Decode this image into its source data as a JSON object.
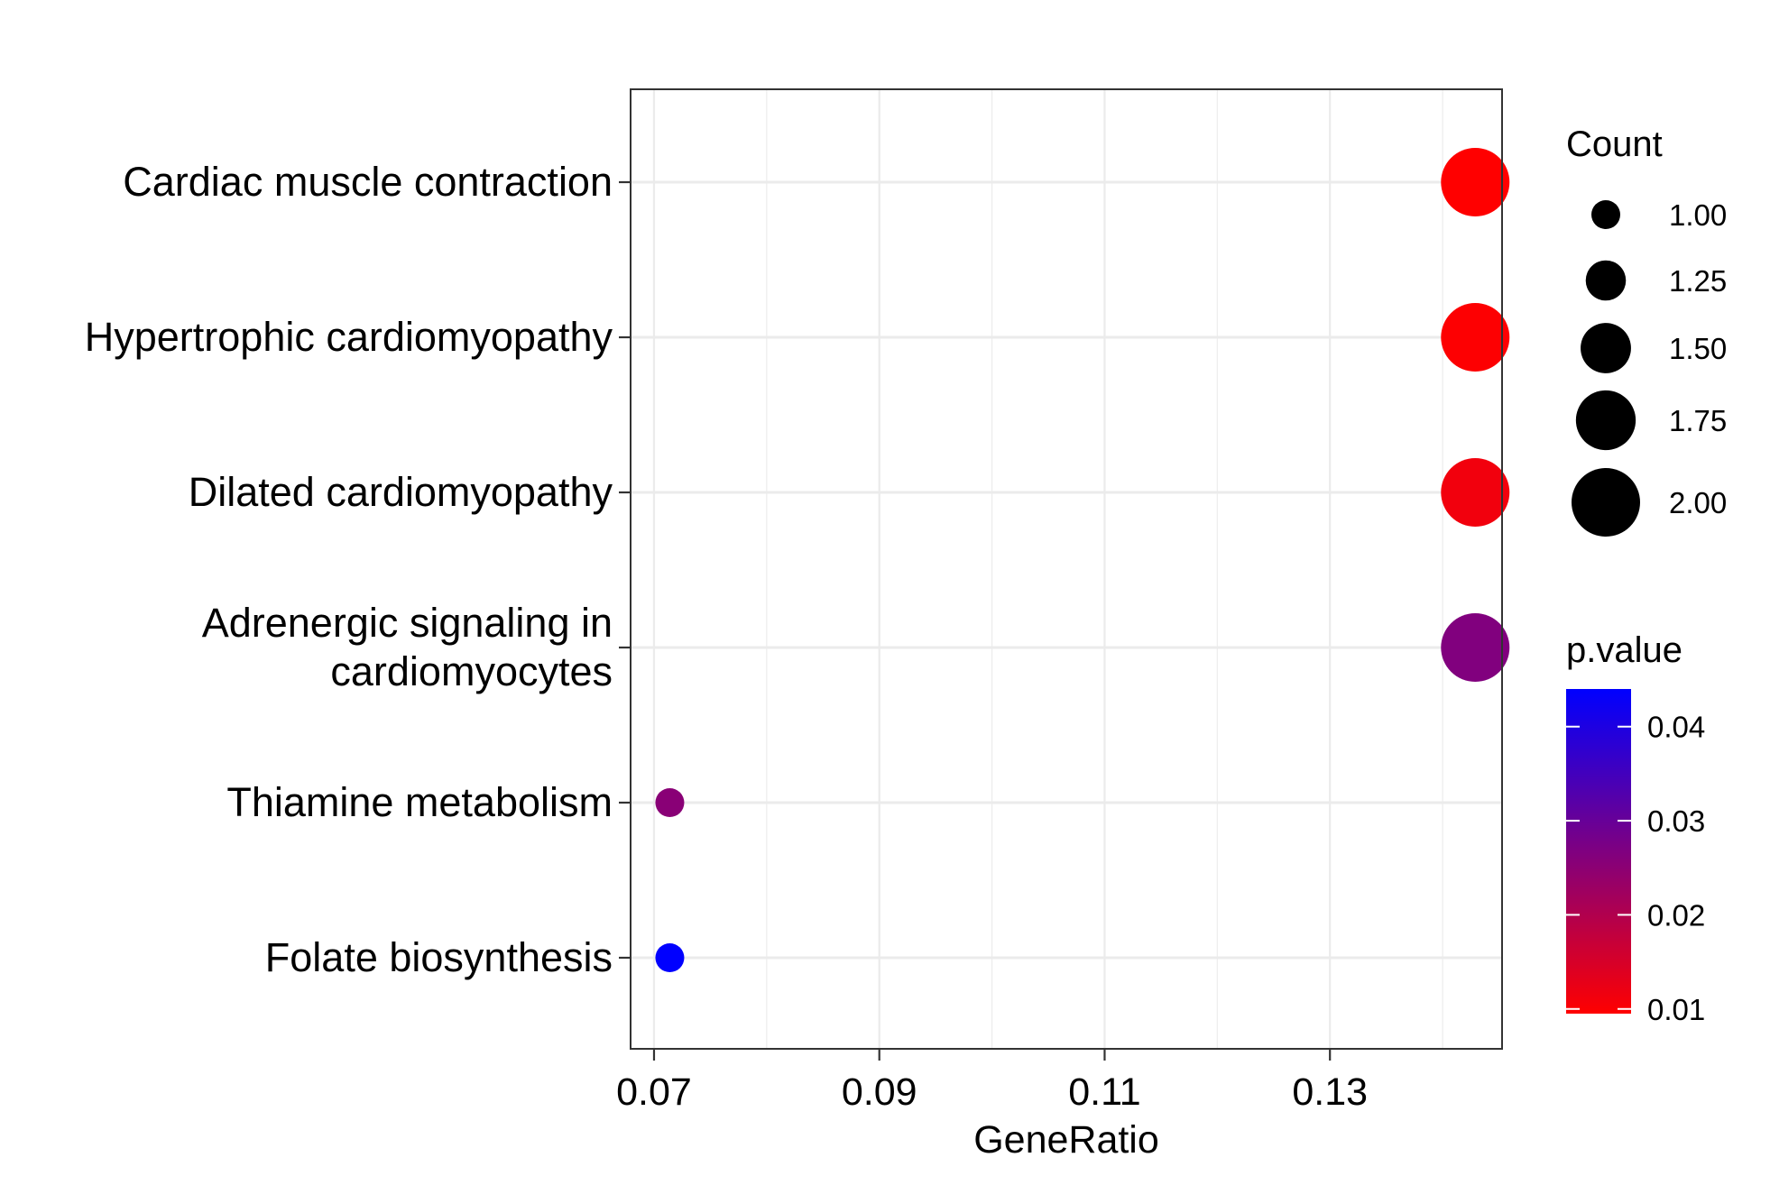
{
  "chart_data": {
    "type": "scatter",
    "title": "",
    "xlabel": "GeneRatio",
    "ylabel": "",
    "xlim": [
      0.068,
      0.1452
    ],
    "x_ticks": [
      {
        "value": 0.07,
        "label": "0.07"
      },
      {
        "value": 0.09,
        "label": "0.09"
      },
      {
        "value": 0.11,
        "label": "0.11"
      },
      {
        "value": 0.13,
        "label": "0.13"
      }
    ],
    "categories": [
      "Cardiac muscle contraction",
      "Hypertrophic cardiomyopathy",
      "Dilated cardiomyopathy",
      "Adrenergic signaling in cardiomyocytes",
      "Thiamine metabolism",
      "Folate biosynthesis"
    ],
    "points": [
      {
        "term": "Cardiac muscle contraction",
        "label_lines": [
          "Cardiac muscle contraction"
        ],
        "gene_ratio": 0.1429,
        "count": 2,
        "p_value": 0.0095
      },
      {
        "term": "Hypertrophic cardiomyopathy",
        "label_lines": [
          "Hypertrophic cardiomyopathy"
        ],
        "gene_ratio": 0.1429,
        "count": 2,
        "p_value": 0.0098
      },
      {
        "term": "Dilated cardiomyopathy",
        "label_lines": [
          "Dilated cardiomyopathy"
        ],
        "gene_ratio": 0.1429,
        "count": 2,
        "p_value": 0.0112
      },
      {
        "term": "Adrenergic signaling in cardiomyocytes",
        "label_lines": [
          "Adrenergic signaling in",
          "cardiomyocytes"
        ],
        "gene_ratio": 0.1429,
        "count": 2,
        "p_value": 0.0265
      },
      {
        "term": "Thiamine metabolism",
        "label_lines": [
          "Thiamine metabolism"
        ],
        "gene_ratio": 0.0714,
        "count": 1,
        "p_value": 0.0255
      },
      {
        "term": "Folate biosynthesis",
        "label_lines": [
          "Folate biosynthesis"
        ],
        "gene_ratio": 0.0714,
        "count": 1,
        "p_value": 0.044
      }
    ],
    "grid": true,
    "legend_position": "right",
    "size_legend": {
      "title": "Count",
      "entries": [
        {
          "value": 1.0,
          "label": "1.00"
        },
        {
          "value": 1.25,
          "label": "1.25"
        },
        {
          "value": 1.5,
          "label": "1.50"
        },
        {
          "value": 1.75,
          "label": "1.75"
        },
        {
          "value": 2.0,
          "label": "2.00"
        }
      ]
    },
    "color_legend": {
      "title": "p.value",
      "range": [
        0.0095,
        0.044
      ],
      "low_color": "#ff0000",
      "high_color": "#0000ff",
      "ticks": [
        {
          "value": 0.01,
          "label": "0.01"
        },
        {
          "value": 0.02,
          "label": "0.02"
        },
        {
          "value": 0.03,
          "label": "0.03"
        },
        {
          "value": 0.04,
          "label": "0.04"
        }
      ]
    }
  }
}
